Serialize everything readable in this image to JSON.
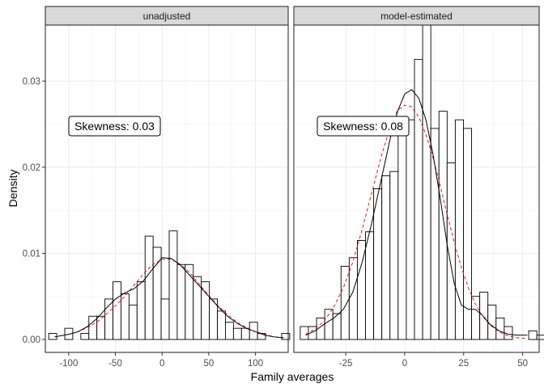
{
  "chart_data": {
    "type": "histogram",
    "ylabel": "Density",
    "xlabel": "Family averages",
    "ylim": [
      -0.0015,
      0.0365
    ],
    "y_ticks": [
      0.0,
      0.01,
      0.02,
      0.03
    ],
    "y_tick_labels": [
      "0.00",
      "0.01",
      "0.02",
      "0.03"
    ],
    "grid": true,
    "panels": [
      {
        "strip": "unadjusted",
        "annotation": "Skewness: 0.03",
        "annotation_pos": {
          "x": -100,
          "y": 0.026
        },
        "xlim": [
          -125,
          135
        ],
        "x_ticks": [
          -100,
          -50,
          0,
          50,
          100
        ],
        "x_tick_labels": [
          "-100",
          "-50",
          "0",
          "50",
          "100"
        ],
        "bin_width": 8.6,
        "bin_start": -121.4,
        "bar_heights": [
          0.0007,
          0.0,
          0.0013,
          0.0,
          0.0007,
          0.0027,
          0.0027,
          0.0047,
          0.0067,
          0.0053,
          0.004,
          0.0067,
          0.012,
          0.0107,
          0.0047,
          0.0126,
          0.0087,
          0.0087,
          0.0073,
          0.0067,
          0.0047,
          0.0033,
          0.002,
          0.0013,
          0.0013,
          0.002,
          0.0007,
          0.0,
          0.0,
          0.0007
        ],
        "density_curve": {
          "style": "solid",
          "x": [
            -115,
            -100,
            -90,
            -80,
            -70,
            -60,
            -50,
            -40,
            -30,
            -20,
            -10,
            0,
            10,
            20,
            30,
            40,
            50,
            60,
            70,
            80,
            90,
            100,
            110,
            120,
            130
          ],
          "y": [
            0.0003,
            0.0006,
            0.0009,
            0.0015,
            0.0024,
            0.0036,
            0.0047,
            0.0054,
            0.0059,
            0.0068,
            0.0082,
            0.0095,
            0.0094,
            0.0086,
            0.0074,
            0.0062,
            0.005,
            0.0038,
            0.0027,
            0.0019,
            0.0013,
            0.0009,
            0.0005,
            0.0003,
            0.0002
          ]
        },
        "normal_curve": {
          "style": "dashed",
          "color": "#e41a1c",
          "x": [
            -115,
            -100,
            -90,
            -80,
            -70,
            -60,
            -50,
            -40,
            -30,
            -20,
            -10,
            0,
            10,
            20,
            30,
            40,
            50,
            60,
            70,
            80,
            90,
            100,
            110,
            120,
            130
          ],
          "y": [
            0.0003,
            0.0006,
            0.0009,
            0.0014,
            0.002,
            0.0029,
            0.0039,
            0.005,
            0.0063,
            0.0076,
            0.0087,
            0.0093,
            0.0093,
            0.0087,
            0.0077,
            0.0064,
            0.0051,
            0.0039,
            0.0029,
            0.002,
            0.0014,
            0.0009,
            0.0006,
            0.0003,
            0.0002
          ]
        }
      },
      {
        "strip": "model-estimated",
        "annotation": "Skewness: 0.08",
        "annotation_pos": {
          "x": -26,
          "y": 0.026
        },
        "xlim": [
          -47,
          57
        ],
        "x_ticks": [
          -25,
          0,
          25,
          50
        ],
        "x_tick_labels": [
          "-25",
          "0",
          "25",
          "50"
        ],
        "bin_width": 3.46,
        "bin_start": -44.3,
        "bar_heights": [
          0.0015,
          0.0015,
          0.0025,
          0.0035,
          0.003,
          0.0085,
          0.0095,
          0.0115,
          0.0125,
          0.0175,
          0.019,
          0.0195,
          0.0245,
          0.0255,
          0.0325,
          0.0365,
          0.0245,
          0.0265,
          0.0205,
          0.0255,
          0.0245,
          0.005,
          0.0055,
          0.004,
          0.0025,
          0.0015,
          0.0,
          0.0,
          0.001,
          0.0005,
          0.001,
          0.0015
        ],
        "density_curve": {
          "style": "solid",
          "x": [
            -42,
            -38,
            -34,
            -30,
            -26,
            -22,
            -18,
            -14,
            -10,
            -6,
            -3,
            0,
            3,
            6,
            9,
            12,
            15,
            18,
            21,
            24,
            27,
            30,
            33,
            36,
            40,
            44,
            48,
            52
          ],
          "y": [
            0.0005,
            0.001,
            0.0018,
            0.0025,
            0.0035,
            0.0055,
            0.009,
            0.0135,
            0.0185,
            0.0235,
            0.0265,
            0.0285,
            0.029,
            0.028,
            0.0255,
            0.0215,
            0.0165,
            0.011,
            0.0065,
            0.004,
            0.0035,
            0.0035,
            0.0028,
            0.0018,
            0.001,
            0.0006,
            0.0005,
            0.0005
          ]
        },
        "normal_curve": {
          "style": "dashed",
          "color": "#e41a1c",
          "x": [
            -42,
            -38,
            -34,
            -30,
            -26,
            -22,
            -18,
            -14,
            -10,
            -6,
            -3,
            0,
            3,
            6,
            9,
            12,
            15,
            18,
            21,
            24,
            27,
            30,
            33,
            36,
            40,
            44,
            48,
            52
          ],
          "y": [
            0.0006,
            0.0012,
            0.0022,
            0.0038,
            0.006,
            0.009,
            0.0128,
            0.017,
            0.0212,
            0.0248,
            0.0266,
            0.0272,
            0.027,
            0.0258,
            0.0238,
            0.0211,
            0.0179,
            0.0145,
            0.0113,
            0.0084,
            0.006,
            0.0041,
            0.0027,
            0.0017,
            0.0009,
            0.0004,
            0.0002,
            0.0001
          ]
        }
      }
    ]
  }
}
